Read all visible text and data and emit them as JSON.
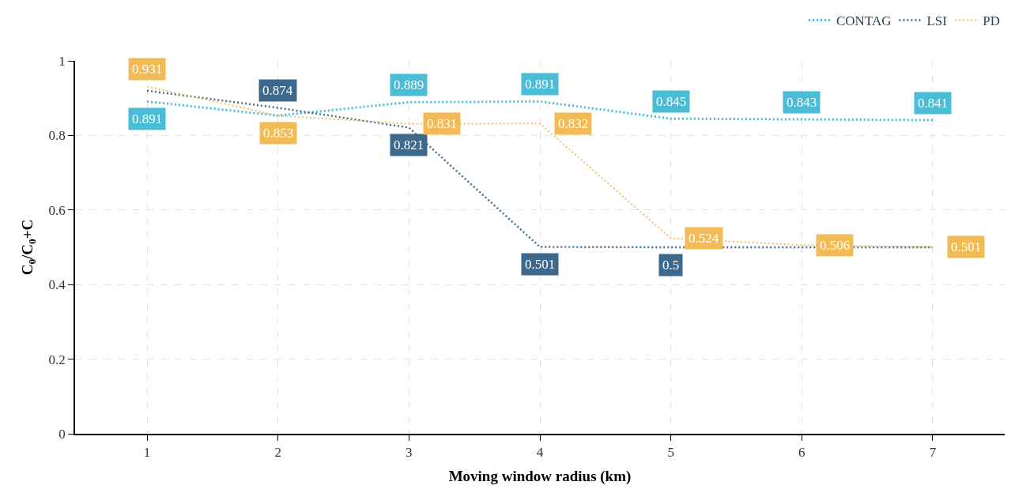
{
  "chart_data": {
    "type": "line",
    "xlabel": "Moving window radius (km)",
    "ylabel": "C$_{0}$/C$_{0}$+C",
    "x": [
      1,
      2,
      3,
      4,
      5,
      6,
      7
    ],
    "xlim": [
      0.45,
      7.55
    ],
    "xticks": [
      1,
      2,
      3,
      4,
      5,
      6,
      7
    ],
    "ylim": [
      0,
      1
    ],
    "yticks": [
      0,
      0.2,
      0.4,
      0.6,
      0.8,
      1
    ],
    "grid": true,
    "legend": "top right",
    "line_style": "dotted",
    "marker": "none",
    "series": [
      {
        "name": "CONTAG",
        "color": "#4bbcd6",
        "values": [
          0.891,
          0.853,
          0.889,
          0.891,
          0.845,
          0.843,
          0.841
        ],
        "value_labels": [
          "0.891",
          null,
          "0.889",
          "0.891",
          "0.845",
          "0.843",
          "0.841"
        ]
      },
      {
        "name": "LSI",
        "color": "#3d6a8c",
        "values": [
          0.92,
          0.874,
          0.821,
          0.501,
          0.5,
          0.5,
          0.5
        ],
        "value_labels": [
          null,
          "0.874",
          "0.821",
          "0.501",
          "0.5",
          null,
          null
        ]
      },
      {
        "name": "PD",
        "color": "#f2bb55",
        "values": [
          0.931,
          0.853,
          0.831,
          0.832,
          0.524,
          0.506,
          0.501
        ],
        "value_labels": [
          "0.931",
          "0.853",
          "0.831",
          "0.832",
          "0.524",
          "0.506",
          "0.501"
        ]
      }
    ]
  }
}
